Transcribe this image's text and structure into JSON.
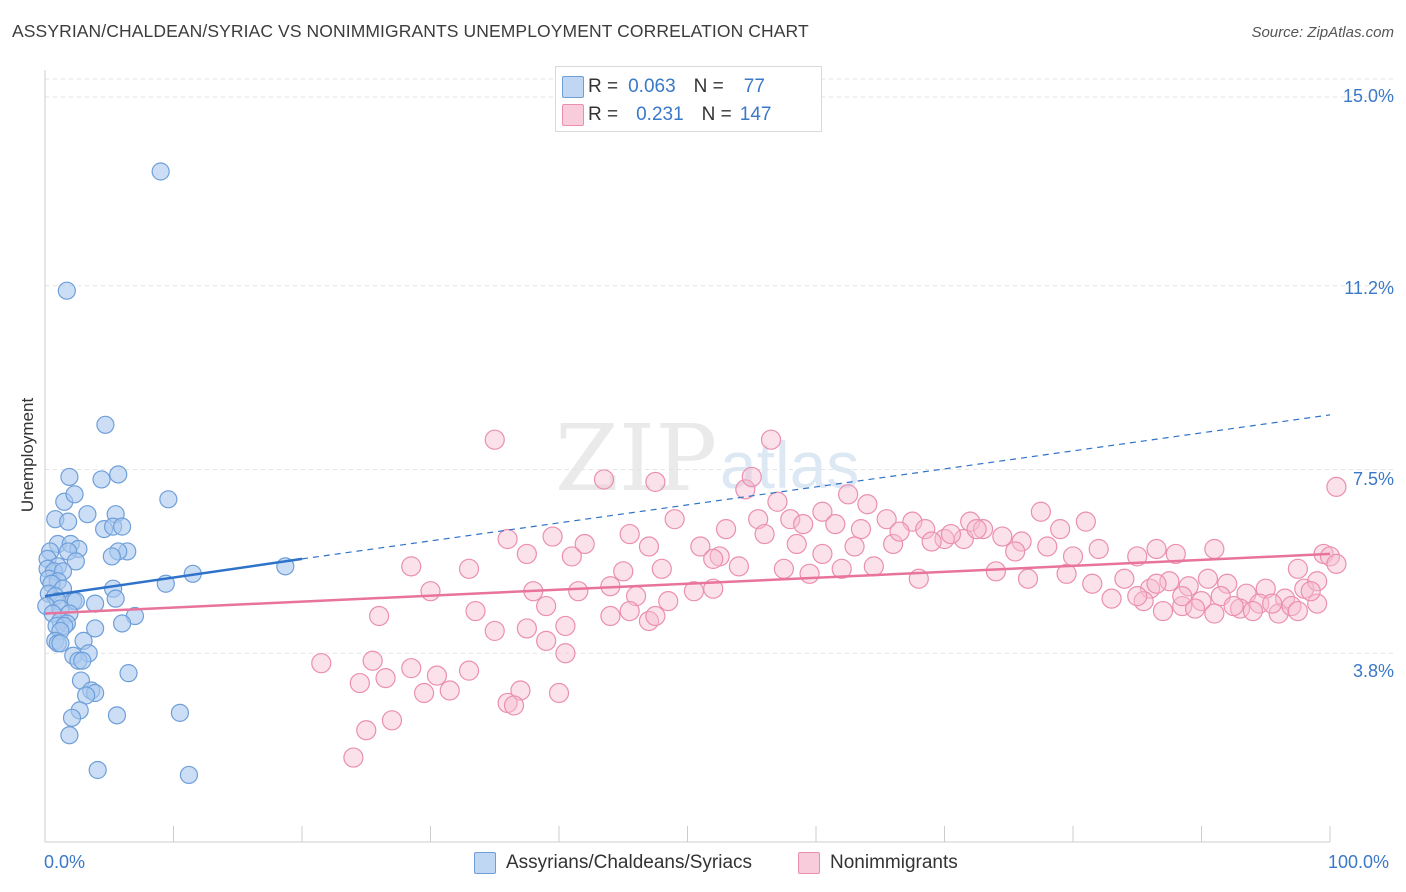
{
  "title": "ASSYRIAN/CHALDEAN/SYRIAC VS NONIMMIGRANTS UNEMPLOYMENT CORRELATION CHART",
  "source": "Source: ZipAtlas.com",
  "watermark": "ZIPatlas",
  "colors": {
    "blue_fill": "#a9c8ef",
    "blue_stroke": "#6f9fd9",
    "blue_line": "#2f72c9",
    "pink_fill": "#f6bdd0",
    "pink_stroke": "#eb8fb0",
    "pink_line": "#e8739b",
    "tick_text": "#3a78c8",
    "grid": "#e3e3e3"
  },
  "legend_top": {
    "rows": [
      {
        "r_label": "R =",
        "r_value": "0.063",
        "n_label": "N =",
        "n_value": "77"
      },
      {
        "r_label": "R =",
        "r_value": "0.231",
        "n_label": "N =",
        "n_value": "147"
      }
    ]
  },
  "legend_bottom": [
    "Assyrians/Chaldeans/Syriacs",
    "Nonimmigrants"
  ],
  "chart_data": {
    "type": "scatter",
    "title": "ASSYRIAN/CHALDEAN/SYRIAC VS NONIMMIGRANTS UNEMPLOYMENT CORRELATION CHART",
    "xlabel": "",
    "ylabel": "Unemployment",
    "xlim": [
      0,
      100
    ],
    "ylim": [
      0,
      15.5
    ],
    "x_tick_labels": [
      "0.0%",
      "100.0%"
    ],
    "y_ticks": [
      3.8,
      7.5,
      11.2,
      15.0
    ],
    "y_tick_labels": [
      "3.8%",
      "7.5%",
      "11.2%",
      "15.0%"
    ],
    "grid": true,
    "series": [
      {
        "name": "Assyrians/Chaldeans/Syriacs",
        "R": 0.063,
        "N": 77,
        "trend_solid": [
          [
            0,
            4.95
          ],
          [
            20,
            5.7
          ]
        ],
        "trend_dashed": [
          [
            20,
            5.7
          ],
          [
            100,
            8.6
          ]
        ],
        "points": [
          [
            9,
            13.5
          ],
          [
            1.7,
            11.1
          ],
          [
            4.7,
            8.4
          ],
          [
            5.7,
            7.4
          ],
          [
            1.9,
            7.35
          ],
          [
            4.4,
            7.3
          ],
          [
            9.6,
            6.9
          ],
          [
            1.5,
            6.85
          ],
          [
            2.3,
            7.0
          ],
          [
            3.3,
            6.6
          ],
          [
            5.5,
            6.6
          ],
          [
            0.8,
            6.5
          ],
          [
            1.8,
            6.45
          ],
          [
            4.6,
            6.3
          ],
          [
            5.3,
            6.35
          ],
          [
            6.0,
            6.35
          ],
          [
            1.0,
            6.0
          ],
          [
            2.0,
            6.0
          ],
          [
            2.6,
            5.9
          ],
          [
            1.8,
            5.85
          ],
          [
            0.4,
            5.85
          ],
          [
            6.4,
            5.85
          ],
          [
            5.7,
            5.85
          ],
          [
            5.2,
            5.75
          ],
          [
            0.2,
            5.7
          ],
          [
            2.4,
            5.65
          ],
          [
            1.0,
            5.55
          ],
          [
            0.2,
            5.5
          ],
          [
            0.7,
            5.45
          ],
          [
            1.4,
            5.45
          ],
          [
            11.5,
            5.4
          ],
          [
            18.7,
            5.55
          ],
          [
            0.3,
            5.3
          ],
          [
            1.0,
            5.25
          ],
          [
            0.5,
            5.2
          ],
          [
            9.4,
            5.2
          ],
          [
            5.3,
            5.1
          ],
          [
            1.4,
            5.1
          ],
          [
            0.3,
            5.0
          ],
          [
            0.8,
            4.95
          ],
          [
            5.5,
            4.9
          ],
          [
            1.0,
            4.85
          ],
          [
            2.2,
            4.85
          ],
          [
            2.4,
            4.85
          ],
          [
            3.9,
            4.8
          ],
          [
            0.1,
            4.75
          ],
          [
            1.2,
            4.7
          ],
          [
            0.6,
            4.6
          ],
          [
            1.9,
            4.6
          ],
          [
            7.0,
            4.55
          ],
          [
            1.2,
            4.45
          ],
          [
            1.7,
            4.4
          ],
          [
            6.0,
            4.4
          ],
          [
            0.9,
            4.35
          ],
          [
            1.5,
            4.35
          ],
          [
            3.9,
            4.3
          ],
          [
            1.2,
            4.25
          ],
          [
            3.0,
            4.05
          ],
          [
            0.8,
            4.05
          ],
          [
            1.0,
            4.0
          ],
          [
            1.2,
            4.0
          ],
          [
            3.4,
            3.8
          ],
          [
            2.2,
            3.75
          ],
          [
            2.6,
            3.65
          ],
          [
            2.9,
            3.65
          ],
          [
            6.5,
            3.4
          ],
          [
            2.8,
            3.25
          ],
          [
            3.6,
            3.05
          ],
          [
            3.9,
            3.0
          ],
          [
            3.2,
            2.95
          ],
          [
            2.7,
            2.65
          ],
          [
            10.5,
            2.6
          ],
          [
            5.6,
            2.55
          ],
          [
            2.1,
            2.5
          ],
          [
            1.9,
            2.15
          ],
          [
            4.1,
            1.45
          ],
          [
            11.2,
            1.35
          ]
        ]
      },
      {
        "name": "Nonimmigrants",
        "R": 0.231,
        "N": 147,
        "trend": [
          [
            0,
            4.6
          ],
          [
            100,
            5.8
          ]
        ],
        "points": [
          [
            35,
            8.1
          ],
          [
            56.5,
            8.1
          ],
          [
            54.5,
            7.1
          ],
          [
            43.5,
            7.3
          ],
          [
            47.5,
            7.25
          ],
          [
            55,
            7.35
          ],
          [
            62.5,
            7.0
          ],
          [
            57,
            6.85
          ],
          [
            64,
            6.8
          ],
          [
            49,
            6.5
          ],
          [
            55.5,
            6.5
          ],
          [
            58,
            6.5
          ],
          [
            59,
            6.4
          ],
          [
            60.5,
            6.65
          ],
          [
            61.5,
            6.4
          ],
          [
            63.5,
            6.3
          ],
          [
            65.5,
            6.5
          ],
          [
            67.5,
            6.45
          ],
          [
            68.5,
            6.3
          ],
          [
            70,
            6.1
          ],
          [
            71.5,
            6.1
          ],
          [
            72,
            6.45
          ],
          [
            73,
            6.3
          ],
          [
            74.5,
            6.15
          ],
          [
            76,
            6.05
          ],
          [
            77.5,
            6.65
          ],
          [
            79,
            6.3
          ],
          [
            81,
            6.45
          ],
          [
            36,
            6.1
          ],
          [
            45.5,
            6.2
          ],
          [
            42,
            6.0
          ],
          [
            53,
            6.3
          ],
          [
            39.5,
            6.15
          ],
          [
            47,
            5.95
          ],
          [
            51,
            5.95
          ],
          [
            52.5,
            5.75
          ],
          [
            56,
            6.2
          ],
          [
            58.5,
            6.0
          ],
          [
            60.5,
            5.8
          ],
          [
            63,
            5.95
          ],
          [
            66,
            6.0
          ],
          [
            66.5,
            6.25
          ],
          [
            69,
            6.05
          ],
          [
            70.5,
            6.2
          ],
          [
            72.5,
            6.3
          ],
          [
            75.5,
            5.85
          ],
          [
            78,
            5.95
          ],
          [
            80,
            5.75
          ],
          [
            82,
            5.9
          ],
          [
            85,
            5.75
          ],
          [
            86.5,
            5.9
          ],
          [
            88,
            5.8
          ],
          [
            91,
            5.9
          ],
          [
            99.5,
            5.8
          ],
          [
            100,
            5.75
          ],
          [
            100.5,
            7.15
          ],
          [
            37.5,
            5.8
          ],
          [
            41,
            5.75
          ],
          [
            45,
            5.45
          ],
          [
            48,
            5.5
          ],
          [
            52,
            5.7
          ],
          [
            54,
            5.55
          ],
          [
            57.5,
            5.5
          ],
          [
            59.5,
            5.4
          ],
          [
            62,
            5.5
          ],
          [
            64.5,
            5.55
          ],
          [
            68,
            5.3
          ],
          [
            74,
            5.45
          ],
          [
            76.5,
            5.3
          ],
          [
            79.5,
            5.4
          ],
          [
            81.5,
            5.2
          ],
          [
            84,
            5.3
          ],
          [
            86,
            5.1
          ],
          [
            87.5,
            5.25
          ],
          [
            89,
            5.15
          ],
          [
            90.5,
            5.3
          ],
          [
            92,
            5.2
          ],
          [
            93.5,
            5.0
          ],
          [
            95,
            5.1
          ],
          [
            96.5,
            4.9
          ],
          [
            98,
            5.1
          ],
          [
            99,
            5.25
          ],
          [
            97.5,
            5.5
          ],
          [
            100.5,
            5.6
          ],
          [
            28.5,
            5.55
          ],
          [
            30,
            5.05
          ],
          [
            33,
            5.5
          ],
          [
            38,
            5.05
          ],
          [
            41.5,
            5.05
          ],
          [
            44,
            5.15
          ],
          [
            46,
            4.95
          ],
          [
            48.5,
            4.85
          ],
          [
            50.5,
            5.05
          ],
          [
            52,
            5.1
          ],
          [
            39,
            4.75
          ],
          [
            33.5,
            4.65
          ],
          [
            47,
            4.45
          ],
          [
            83,
            4.9
          ],
          [
            85.5,
            4.85
          ],
          [
            88.5,
            4.75
          ],
          [
            90,
            4.85
          ],
          [
            91.5,
            4.95
          ],
          [
            93,
            4.7
          ],
          [
            94.5,
            4.8
          ],
          [
            96,
            4.6
          ],
          [
            97,
            4.75
          ],
          [
            99,
            4.8
          ],
          [
            87,
            4.65
          ],
          [
            89.5,
            4.7
          ],
          [
            91,
            4.6
          ],
          [
            92.5,
            4.75
          ],
          [
            94,
            4.65
          ],
          [
            95.5,
            4.8
          ],
          [
            97.5,
            4.65
          ],
          [
            98.5,
            5.05
          ],
          [
            26,
            4.55
          ],
          [
            35,
            4.25
          ],
          [
            37.5,
            4.3
          ],
          [
            39,
            4.05
          ],
          [
            40.5,
            4.35
          ],
          [
            44,
            4.55
          ],
          [
            45.5,
            4.65
          ],
          [
            47.5,
            4.55
          ],
          [
            85,
            4.95
          ],
          [
            86.5,
            5.2
          ],
          [
            88.5,
            4.95
          ],
          [
            21.5,
            3.6
          ],
          [
            25.5,
            3.65
          ],
          [
            24.5,
            3.2
          ],
          [
            28.5,
            3.5
          ],
          [
            30.5,
            3.35
          ],
          [
            33,
            3.45
          ],
          [
            26.5,
            3.3
          ],
          [
            29.5,
            3.0
          ],
          [
            31.5,
            3.05
          ],
          [
            37,
            3.05
          ],
          [
            40,
            3.0
          ],
          [
            36,
            2.8
          ],
          [
            36.5,
            2.75
          ],
          [
            27,
            2.45
          ],
          [
            25,
            2.25
          ],
          [
            24,
            1.7
          ],
          [
            40.5,
            3.8
          ]
        ]
      }
    ]
  }
}
